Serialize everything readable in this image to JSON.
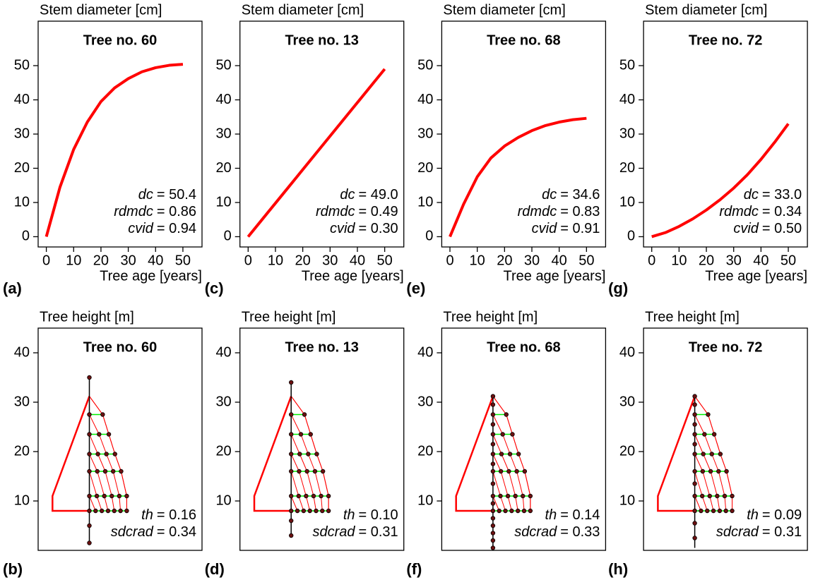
{
  "chart_data": [
    {
      "type": "line",
      "panel": "(a)",
      "title": "Tree no. 60",
      "ylabel": "Stem diameter [cm]",
      "xlabel": "Tree age [years]",
      "x": [
        0,
        5,
        10,
        15,
        20,
        25,
        30,
        35,
        40,
        45,
        50
      ],
      "values": [
        0,
        14.5,
        25.5,
        33.5,
        39.5,
        43.5,
        46.2,
        48.2,
        49.4,
        50.1,
        50.4
      ],
      "color": "#ff0000",
      "xlim": [
        -3,
        57
      ],
      "ylim": [
        -3,
        63
      ],
      "xticks": [
        0,
        10,
        20,
        30,
        40,
        50
      ],
      "yticks": [
        0,
        10,
        20,
        30,
        40,
        50
      ],
      "annotations": [
        {
          "name": "dc",
          "text": "= 50.4"
        },
        {
          "name": "rdmdc",
          "text": "= 0.86"
        },
        {
          "name": "cvid",
          "text": "= 0.94"
        }
      ]
    },
    {
      "type": "tree",
      "panel": "(b)",
      "title": "Tree no. 60",
      "ylabel": "Tree height [m]",
      "xlim": [
        -5,
        11
      ],
      "ylim": [
        0,
        45
      ],
      "yticks": [
        10,
        20,
        30,
        40
      ],
      "color": "#ff0000",
      "whorl_color": "#00ee00",
      "stem": [
        1.5,
        35
      ],
      "crown_top": 31.2,
      "crown_base": 8,
      "crown_left": -3.6,
      "crown_left_top": 11,
      "whorls": [
        {
          "height": 27.5,
          "width": 1.3
        },
        {
          "height": 23.5,
          "width": 1.9
        },
        {
          "height": 19.5,
          "width": 2.5
        },
        {
          "height": 16,
          "width": 3.1
        },
        {
          "height": 11,
          "width": 3.65
        },
        {
          "height": 8,
          "width": 3.65
        }
      ],
      "stem_points": [
        1.5,
        5,
        35
      ],
      "annotations": [
        {
          "name": "th",
          "text": "= 0.16"
        },
        {
          "name": "sdcrad",
          "text": "= 0.34"
        }
      ]
    },
    {
      "type": "line",
      "panel": "(c)",
      "title": "Tree no. 13",
      "ylabel": "Stem diameter [cm]",
      "xlabel": "Tree age [years]",
      "x": [
        0,
        5,
        10,
        15,
        20,
        25,
        30,
        35,
        40,
        45,
        50
      ],
      "values": [
        0,
        4.9,
        9.8,
        14.7,
        19.6,
        24.5,
        29.4,
        34.3,
        39.2,
        44.1,
        49.0
      ],
      "color": "#ff0000",
      "xlim": [
        -3,
        57
      ],
      "ylim": [
        -3,
        63
      ],
      "xticks": [
        0,
        10,
        20,
        30,
        40,
        50
      ],
      "yticks": [
        0,
        10,
        20,
        30,
        40,
        50
      ],
      "annotations": [
        {
          "name": "dc",
          "text": "= 49.0"
        },
        {
          "name": "rdmdc",
          "text": "= 0.49"
        },
        {
          "name": "cvid",
          "text": "= 0.30"
        }
      ]
    },
    {
      "type": "tree",
      "panel": "(d)",
      "title": "Tree no. 13",
      "ylabel": "Tree height [m]",
      "xlim": [
        -5,
        11
      ],
      "ylim": [
        0,
        45
      ],
      "yticks": [
        10,
        20,
        30,
        40
      ],
      "color": "#ff0000",
      "whorl_color": "#00ee00",
      "stem": [
        3,
        34
      ],
      "crown_top": 31.2,
      "crown_base": 8,
      "crown_left": -3.6,
      "crown_left_top": 11,
      "whorls": [
        {
          "height": 27.5,
          "width": 1.3
        },
        {
          "height": 23.5,
          "width": 1.9
        },
        {
          "height": 19.5,
          "width": 2.5
        },
        {
          "height": 16,
          "width": 3.1
        },
        {
          "height": 11,
          "width": 3.65
        },
        {
          "height": 8,
          "width": 3.65
        }
      ],
      "stem_points": [
        3,
        6,
        34
      ],
      "annotations": [
        {
          "name": "th",
          "text": "= 0.10"
        },
        {
          "name": "sdcrad",
          "text": "= 0.31"
        }
      ]
    },
    {
      "type": "line",
      "panel": "(e)",
      "title": "Tree no. 68",
      "ylabel": "Stem diameter [cm]",
      "xlabel": "Tree age [years]",
      "x": [
        0,
        5,
        10,
        15,
        20,
        25,
        30,
        35,
        40,
        45,
        50
      ],
      "values": [
        0,
        9.5,
        17.5,
        23,
        26.5,
        29,
        31,
        32.5,
        33.5,
        34.2,
        34.6
      ],
      "color": "#ff0000",
      "xlim": [
        -3,
        57
      ],
      "ylim": [
        -3,
        63
      ],
      "xticks": [
        0,
        10,
        20,
        30,
        40,
        50
      ],
      "yticks": [
        0,
        10,
        20,
        30,
        40,
        50
      ],
      "annotations": [
        {
          "name": "dc",
          "text": "= 34.6"
        },
        {
          "name": "rdmdc",
          "text": "= 0.83"
        },
        {
          "name": "cvid",
          "text": "= 0.91"
        }
      ]
    },
    {
      "type": "tree",
      "panel": "(f)",
      "title": "Tree no. 68",
      "ylabel": "Tree height [m]",
      "xlim": [
        -5,
        11
      ],
      "ylim": [
        0,
        45
      ],
      "yticks": [
        10,
        20,
        30,
        40
      ],
      "color": "#ff0000",
      "whorl_color": "#00ee00",
      "stem": [
        0.5,
        31.2
      ],
      "crown_top": 31.2,
      "crown_base": 8,
      "crown_left": -3.6,
      "crown_left_top": 11,
      "whorls": [
        {
          "height": 27.5,
          "width": 1.3
        },
        {
          "height": 23.5,
          "width": 1.9
        },
        {
          "height": 19.5,
          "width": 2.5
        },
        {
          "height": 16,
          "width": 3.1
        },
        {
          "height": 11,
          "width": 3.65
        },
        {
          "height": 8,
          "width": 3.65
        }
      ],
      "stem_points": [
        0.5,
        2,
        3.5,
        5,
        6.5,
        9.5,
        13.5,
        17.5,
        21.5,
        25.5,
        29.5,
        31.2
      ],
      "annotations": [
        {
          "name": "th",
          "text": "= 0.14"
        },
        {
          "name": "sdcrad",
          "text": "= 0.33"
        }
      ]
    },
    {
      "type": "line",
      "panel": "(g)",
      "title": "Tree no. 72",
      "ylabel": "Stem diameter [cm]",
      "xlabel": "Tree age [years]",
      "x": [
        0,
        5,
        10,
        15,
        20,
        25,
        30,
        35,
        40,
        45,
        50
      ],
      "values": [
        0,
        1.2,
        3,
        5.2,
        7.8,
        10.8,
        14.2,
        18.1,
        22.6,
        27.6,
        33.0
      ],
      "color": "#ff0000",
      "xlim": [
        -3,
        57
      ],
      "ylim": [
        -3,
        63
      ],
      "xticks": [
        0,
        10,
        20,
        30,
        40,
        50
      ],
      "yticks": [
        0,
        10,
        20,
        30,
        40,
        50
      ],
      "annotations": [
        {
          "name": "dc",
          "text": "= 33.0"
        },
        {
          "name": "rdmdc",
          "text": "= 0.34"
        },
        {
          "name": "cvid",
          "text": "= 0.50"
        }
      ]
    },
    {
      "type": "tree",
      "panel": "(h)",
      "title": "Tree no. 72",
      "ylabel": "Tree height [m]",
      "xlim": [
        -5,
        11
      ],
      "ylim": [
        0,
        45
      ],
      "yticks": [
        10,
        20,
        30,
        40
      ],
      "color": "#ff0000",
      "whorl_color": "#00ee00",
      "stem": [
        0.5,
        31.2
      ],
      "crown_top": 31.2,
      "crown_base": 8,
      "crown_left": -3.6,
      "crown_left_top": 11,
      "whorls": [
        {
          "height": 27.5,
          "width": 1.3
        },
        {
          "height": 23.5,
          "width": 1.9
        },
        {
          "height": 19.5,
          "width": 2.5
        },
        {
          "height": 16,
          "width": 3.1
        },
        {
          "height": 11,
          "width": 3.65
        },
        {
          "height": 8,
          "width": 3.65
        }
      ],
      "stem_points": [
        2.5,
        5.5,
        13.5,
        21.5,
        25.5,
        29.5,
        31.2
      ],
      "annotations": [
        {
          "name": "th",
          "text": "= 0.09"
        },
        {
          "name": "sdcrad",
          "text": "= 0.31"
        }
      ]
    }
  ]
}
